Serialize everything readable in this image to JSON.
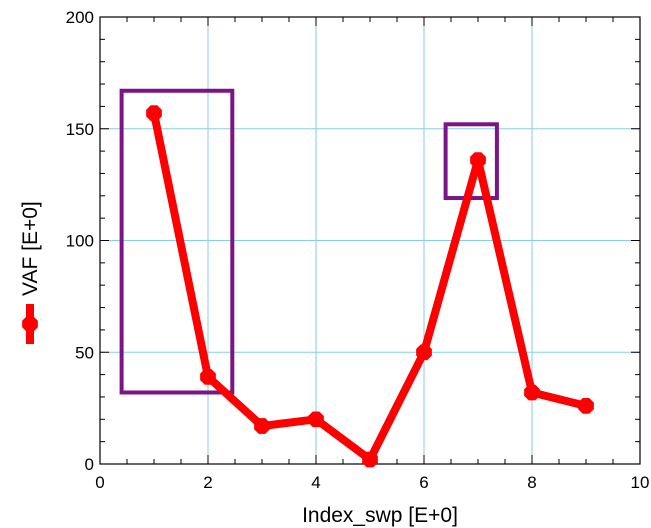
{
  "chart_data": {
    "type": "line",
    "xlabel": "Index_swp  [E+0]",
    "ylabel": "VAF  [E+0]",
    "xlim": [
      0,
      10
    ],
    "ylim": [
      0,
      200
    ],
    "xticks": [
      "0",
      "2",
      "4",
      "6",
      "8",
      "10"
    ],
    "yticks": [
      "0",
      "50",
      "100",
      "150",
      "200"
    ],
    "grid": true,
    "legend": "inline with y-axis label",
    "series": [
      {
        "color": "#ff0000",
        "marker": "octagon",
        "x": [
          1,
          2,
          3,
          4,
          5,
          6,
          7,
          8,
          9
        ],
        "y": [
          157,
          39,
          17,
          20,
          2,
          50,
          136,
          32,
          26
        ]
      }
    ],
    "highlight_boxes": [
      {
        "color": "#7b1487",
        "x_range": [
          0.4,
          2.45
        ],
        "y_range": [
          32,
          167
        ]
      },
      {
        "color": "#7b1487",
        "x_range": [
          6.4,
          7.35
        ],
        "y_range": [
          119,
          152
        ]
      }
    ],
    "grid_color": "#87ceeb"
  }
}
